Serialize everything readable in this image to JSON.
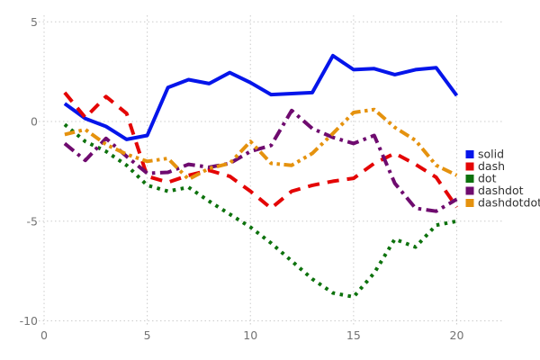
{
  "chart_data": {
    "type": "line",
    "title": "",
    "xlabel": "",
    "ylabel": "",
    "xlim": [
      0,
      20
    ],
    "ylim": [
      -10,
      5
    ],
    "x_ticks": [
      0,
      5,
      10,
      15,
      20
    ],
    "y_ticks": [
      5,
      0,
      -5,
      -10
    ],
    "grid": true,
    "grid_style": "dotted",
    "legend_position": "right",
    "x": [
      1,
      2,
      3,
      4,
      5,
      6,
      7,
      8,
      9,
      10,
      11,
      12,
      13,
      14,
      15,
      16,
      17,
      18,
      19,
      20
    ],
    "series": [
      {
        "name": "solid",
        "color": "#0515ea",
        "dash_style": "solid",
        "values": [
          0.9,
          0.15,
          -0.25,
          -0.9,
          -0.7,
          1.7,
          2.1,
          1.9,
          2.45,
          1.95,
          1.35,
          1.4,
          1.45,
          3.3,
          2.6,
          2.65,
          2.35,
          2.6,
          2.7,
          1.3
        ]
      },
      {
        "name": "dash",
        "color": "#e40505",
        "dash_style": "dash",
        "values": [
          1.45,
          0.2,
          1.25,
          0.4,
          -2.75,
          -3.05,
          -2.7,
          -2.45,
          -2.75,
          -3.5,
          -4.35,
          -3.5,
          -3.2,
          -3.0,
          -2.85,
          -2.1,
          -1.6,
          -2.15,
          -2.8,
          -4.3
        ]
      },
      {
        "name": "dot",
        "color": "#0d720d",
        "dash_style": "dot",
        "values": [
          -0.15,
          -1.0,
          -1.5,
          -2.2,
          -3.2,
          -3.5,
          -3.3,
          -4.0,
          -4.65,
          -5.3,
          -6.1,
          -7.0,
          -7.9,
          -8.6,
          -8.8,
          -7.6,
          -5.9,
          -6.3,
          -5.2,
          -5.0
        ]
      },
      {
        "name": "dashdot",
        "color": "#6f0b6f",
        "dash_style": "dashdot",
        "values": [
          -1.1,
          -1.95,
          -0.85,
          -1.75,
          -2.6,
          -2.55,
          -2.15,
          -2.3,
          -2.1,
          -1.5,
          -1.2,
          0.55,
          -0.35,
          -0.8,
          -1.1,
          -0.7,
          -3.1,
          -4.35,
          -4.5,
          -3.9
        ]
      },
      {
        "name": "dashdotdot",
        "color": "#e5920e",
        "dash_style": "dashdotdot",
        "values": [
          -0.65,
          -0.4,
          -1.15,
          -1.65,
          -2.0,
          -1.85,
          -2.9,
          -2.35,
          -2.1,
          -1.0,
          -2.1,
          -2.2,
          -1.6,
          -0.6,
          0.45,
          0.6,
          -0.3,
          -0.95,
          -2.2,
          -2.7
        ]
      }
    ],
    "legend": [
      "solid",
      "dash",
      "dot",
      "dashdot",
      "dashdotdot"
    ],
    "colors": {
      "tick_label": "#737373",
      "grid_line": "#cccccc",
      "legend_text": "#303030",
      "background": "#ffffff"
    }
  }
}
